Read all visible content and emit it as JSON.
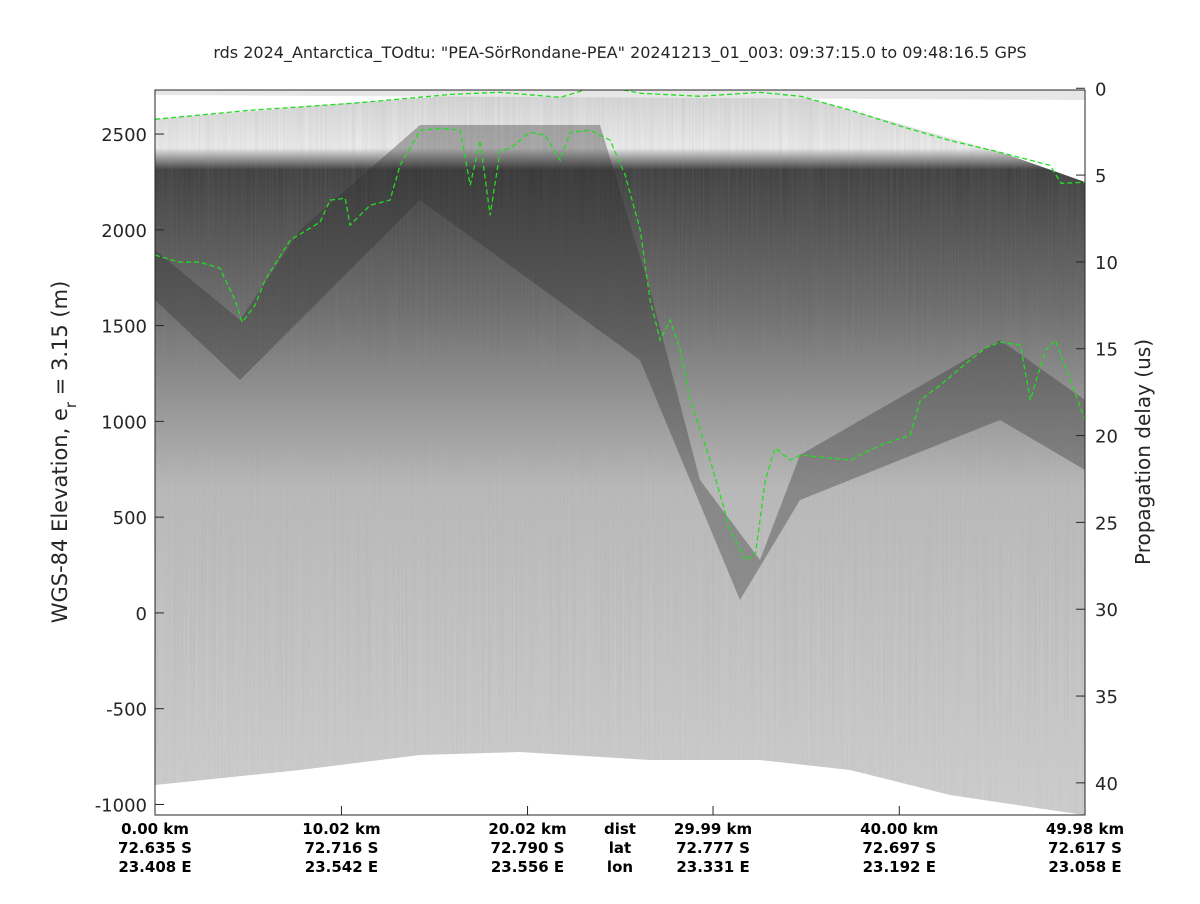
{
  "chart_data": {
    "type": "echogram",
    "title": "rds 2024_Antarctica_TOdtu: \"PEA-SörRondane-PEA\"  20241213_01_003: 09:37:15.0 to 09:48:16.5 GPS",
    "ylabel": {
      "text": "WGS-84 Elevation, e",
      "subscript": "r",
      "suffix": " = 3.15 (m)"
    },
    "y2label": "Propagation delay (us)",
    "xlim": [
      0,
      49.98
    ],
    "xticks": [
      {
        "value": 0,
        "label": "0.00 km"
      },
      {
        "value": 10.02,
        "label": "10.02 km"
      },
      {
        "value": 20.02,
        "label": "20.02 km"
      },
      {
        "value": 29.99,
        "label": "29.99 km"
      },
      {
        "value": 40.0,
        "label": "40.00 km"
      },
      {
        "value": 49.98,
        "label": "49.98 km"
      }
    ],
    "xtick_lat": [
      "72.635 S",
      "72.716 S",
      "72.790 S",
      "72.777 S",
      "72.697 S",
      "72.617 S"
    ],
    "xtick_lon": [
      "23.408 E",
      "23.542 E",
      "23.556 E",
      "23.331 E",
      "23.192 E",
      "23.058 E"
    ],
    "xtick_row_labels": [
      "dist",
      "lat",
      "lon"
    ],
    "ylim": [
      -1055,
      2730
    ],
    "yticks": [
      -1000,
      -500,
      0,
      500,
      1000,
      1500,
      2000,
      2500
    ],
    "y2lim": [
      41.85,
      0.1
    ],
    "y2ticks": [
      0,
      5,
      10,
      15,
      20,
      25,
      30,
      35,
      40
    ],
    "series": [
      {
        "color": "#22dd22",
        "dashed": true,
        "x": [
          0,
          5.1,
          10.5,
          13.2,
          15.9,
          18.5,
          21.8,
          23.9,
          26.1,
          29.3,
          32.5,
          34.7,
          37.4,
          40.1,
          42.7,
          45.4,
          48.1,
          48.7,
          49.98
        ],
        "values": [
          2577,
          2624,
          2660,
          2683,
          2707,
          2718,
          2692,
          2754,
          2713,
          2697,
          2718,
          2697,
          2624,
          2540,
          2467,
          2405,
          2337,
          2243,
          2248
        ]
      },
      {
        "color": "#22dd22",
        "dashed": true,
        "x": [
          0,
          1.34,
          2.42,
          3.49,
          4.3,
          4.68,
          5.38,
          5.91,
          7.26,
          8.87,
          9.41,
          10.22,
          10.48,
          11.56,
          12.63,
          13.17,
          14.25,
          15.32,
          16.4,
          16.94,
          17.47,
          18.01,
          18.55,
          19.09,
          19.62,
          20.16,
          20.97,
          21.77,
          22.31,
          23.39,
          24.46,
          25.27,
          26.08,
          26.61,
          27.15,
          27.69,
          28.23,
          28.76,
          29.84,
          30.91,
          31.72,
          32.26,
          32.8,
          33.33,
          34.14,
          34.68,
          37.37,
          38.98,
          40.59,
          41.13,
          42.2,
          43.28,
          44.62,
          45.43,
          46.51,
          47.04,
          47.85,
          48.39,
          49.19,
          49.98
        ],
        "values": [
          1868,
          1831,
          1831,
          1800,
          1633,
          1518,
          1607,
          1737,
          1946,
          2040,
          2155,
          2165,
          2024,
          2128,
          2155,
          2337,
          2520,
          2530,
          2520,
          2233,
          2468,
          2076,
          2415,
          2426,
          2468,
          2509,
          2494,
          2363,
          2509,
          2520,
          2468,
          2285,
          1998,
          1633,
          1424,
          1529,
          1372,
          1111,
          798,
          433,
          277,
          303,
          694,
          861,
          798,
          824,
          798,
          876,
          929,
          1111,
          1189,
          1278,
          1383,
          1414,
          1398,
          1111,
          1372,
          1424,
          1216,
          1007
        ]
      }
    ]
  }
}
